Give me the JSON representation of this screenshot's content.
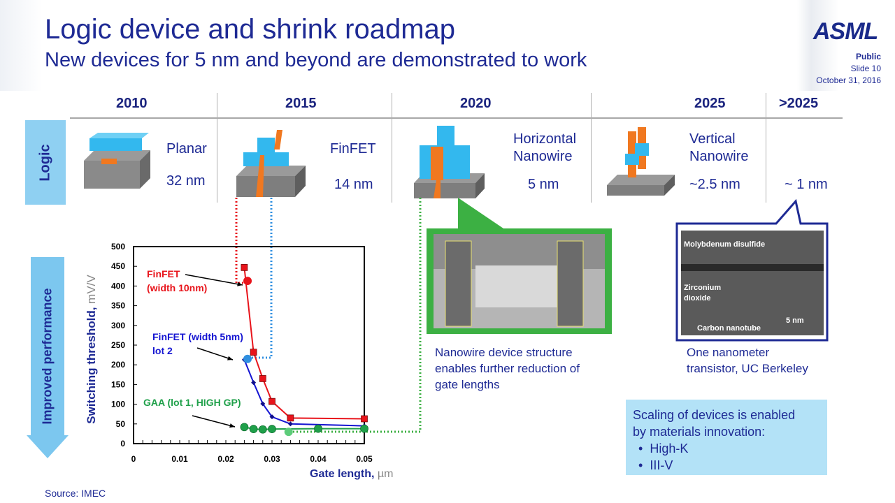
{
  "header": {
    "title": "Logic device and shrink roadmap",
    "subtitle": "New devices for 5 nm and beyond are demonstrated to work",
    "logo": "ASML",
    "classification": "Public",
    "slide": "Slide 10",
    "date": "October 31, 2016"
  },
  "roadmap": {
    "row_label": "Logic",
    "years": [
      "2010",
      "2015",
      "2020",
      "2025",
      ">2025"
    ],
    "devices": [
      {
        "name": "Planar",
        "node": "32 nm"
      },
      {
        "name": "FinFET",
        "node": "14 nm"
      },
      {
        "name": "Horizontal Nanowire",
        "name_lines": [
          "Horizontal",
          "Nanowire"
        ],
        "node": "5 nm"
      },
      {
        "name": "Vertical Nanowire",
        "name_lines": [
          "Vertical",
          "Nanowire"
        ],
        "node": "~2.5 nm"
      },
      {
        "name": "",
        "node": "~ 1 nm"
      }
    ]
  },
  "performance_label": "Improved performance",
  "chart_data": {
    "type": "line",
    "xlabel": "Gate length,",
    "xunit": "µm",
    "ylabel": "Switching threshold,",
    "yunit": "mV/V",
    "xlim": [
      0,
      0.05
    ],
    "ylim": [
      0,
      500
    ],
    "xticks": [
      "0",
      "0.01",
      "0.02",
      "0.03",
      "0.04",
      "0.05"
    ],
    "yticks": [
      "0",
      "50",
      "100",
      "150",
      "200",
      "250",
      "300",
      "350",
      "400",
      "450",
      "500"
    ],
    "series": [
      {
        "name": "FinFET (width 10nm)",
        "label_lines": [
          "FinFET",
          "(width 10nm)"
        ],
        "color": "#e8141b",
        "marker": "square",
        "x": [
          0.024,
          0.026,
          0.028,
          0.03,
          0.034,
          0.05
        ],
        "y": [
          447,
          232,
          165,
          107,
          65,
          63
        ],
        "highlight": {
          "x": 0.0247,
          "y": 413
        }
      },
      {
        "name": "FinFET (width 5nm) lot 2",
        "label_lines": [
          "FinFET (width 5nm)",
          "lot 2"
        ],
        "color": "#1414d2",
        "marker": "diamond",
        "x": [
          0.024,
          0.026,
          0.028,
          0.03,
          0.034,
          0.05
        ],
        "y": [
          213,
          155,
          101,
          68,
          50,
          45
        ],
        "highlight": {
          "x": 0.0247,
          "y": 215,
          "color": "#2f8fe0"
        }
      },
      {
        "name": "GAA (lot 1, HIGH GP)",
        "label_lines": [
          "GAA (lot 1, HIGH GP)"
        ],
        "color": "#1fa04a",
        "marker": "circle",
        "x": [
          0.024,
          0.026,
          0.028,
          0.03,
          0.04,
          0.05
        ],
        "y": [
          42,
          37,
          36,
          37,
          38,
          38
        ],
        "highlight": {
          "x": 0.0336,
          "y": 30,
          "color": "#5dcc7a"
        }
      }
    ]
  },
  "nanowire_image": {
    "caption": [
      "Nanowire device structure",
      "enables further reduction of",
      "gate lengths"
    ]
  },
  "berkeley_image": {
    "labels": {
      "mos2": "Molybdenum disulfide",
      "zro2_1": "Zirconium",
      "zro2_2": "dioxide",
      "cnt": "Carbon nanotube",
      "scale": "5 nm"
    },
    "caption": [
      "One nanometer",
      "transistor, UC Berkeley"
    ]
  },
  "info_box": {
    "text1": "Scaling of devices is enabled",
    "text2": "by materials innovation:",
    "bullets": [
      "High-K",
      "III-V"
    ],
    "bullet_glyph": "•"
  },
  "source": "Source: IMEC",
  "colors": {
    "navy": "#1e2a94",
    "lightblue": "#8fd0f2",
    "green": "#3cb043",
    "infobox": "#b3e2f7"
  }
}
